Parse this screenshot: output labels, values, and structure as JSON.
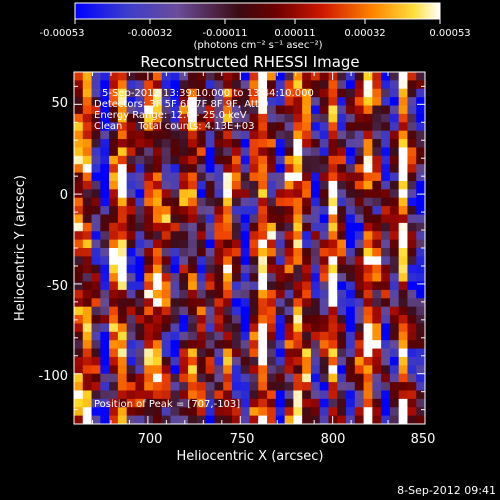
{
  "colorbar": {
    "ticks": [
      "-0.00053",
      "-0.00032",
      "-0.00011",
      "0.00011",
      "0.00032",
      "0.00053"
    ],
    "unit_label": "(photons cm⁻² s⁻¹ asec⁻²)",
    "min": -0.00053,
    "max": 0.00053
  },
  "plot": {
    "title": "Reconstructed RHESSI Image",
    "xlabel": "Heliocentric X (arcsec)",
    "ylabel": "Heliocentric Y (arcsec)",
    "xlim": [
      660,
      850
    ],
    "ylim": [
      -128,
      68
    ],
    "xticks": [
      "700",
      "750",
      "800",
      "850"
    ],
    "yticks": [
      "50",
      "0",
      "-50",
      "-100"
    ],
    "xtick_values": [
      700,
      750,
      800,
      850
    ],
    "ytick_values": [
      50,
      0,
      -50,
      -100
    ],
    "annotations": [
      "5-Sep-2012 13:39:10.000 to 13:44:10.000",
      "Detectors: 3F 5F 6F 7F 8F 9F, Att 0",
      "Energy Range: 12.0 - 25.0 keV",
      "Clean     Total counts: 4.13E+03"
    ],
    "peak_label": "Position of Peak = [707,-103]"
  },
  "footer": {
    "timestamp": "8-Sep-2012 09:41"
  },
  "chart_data": {
    "type": "heatmap",
    "title": "Reconstructed RHESSI Image",
    "xlabel": "Heliocentric X (arcsec)",
    "ylabel": "Heliocentric Y (arcsec)",
    "x_range": [
      660,
      850
    ],
    "y_range": [
      -128,
      68
    ],
    "value_range": [
      -0.00053,
      0.00053
    ],
    "colormap": [
      "#0000ff",
      "#3c3cc8",
      "#6a4a9a",
      "#5a0000",
      "#c02000",
      "#ff7000",
      "#ffd000",
      "#ffffff"
    ],
    "peak_position": [
      707,
      -103
    ]
  }
}
